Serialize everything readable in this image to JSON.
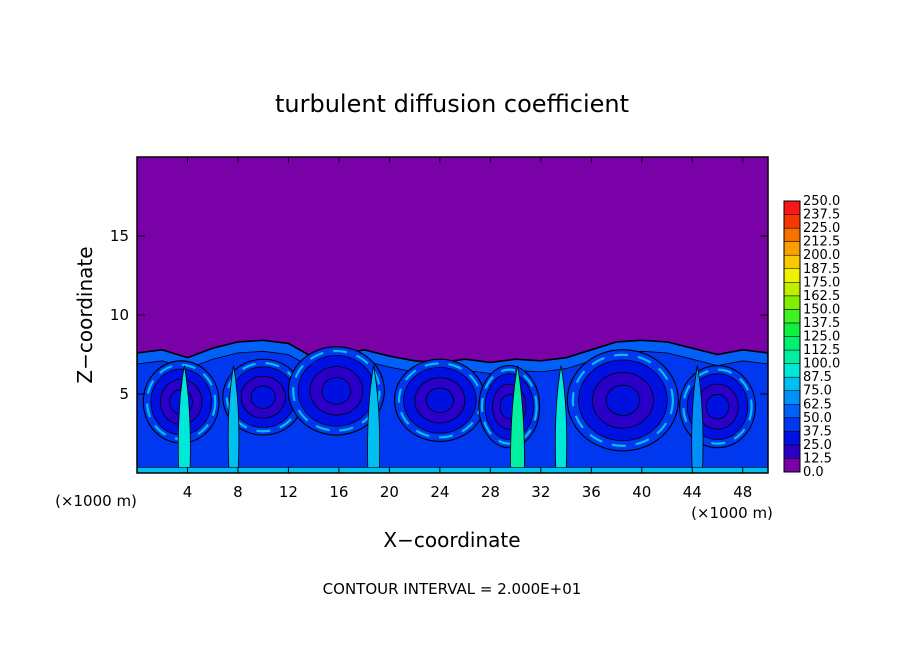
{
  "chart_data": {
    "type": "heatmap",
    "title": "turbulent diffusion coefficient",
    "xlabel": "X−coordinate",
    "ylabel": "Z−coordinate",
    "x_unit_left": "(×1000 m)",
    "x_unit_right": "(×1000 m)",
    "footer": "CONTOUR INTERVAL = 2.000E+01",
    "xlim": [
      0,
      50
    ],
    "ylim": [
      0,
      20
    ],
    "x_ticks": [
      {
        "v": 4,
        "label": "4"
      },
      {
        "v": 8,
        "label": "8"
      },
      {
        "v": 12,
        "label": "12"
      },
      {
        "v": 16,
        "label": "16"
      },
      {
        "v": 20,
        "label": "20"
      },
      {
        "v": 24,
        "label": "24"
      },
      {
        "v": 28,
        "label": "28"
      },
      {
        "v": 32,
        "label": "32"
      },
      {
        "v": 36,
        "label": "36"
      },
      {
        "v": 40,
        "label": "40"
      },
      {
        "v": 44,
        "label": "44"
      },
      {
        "v": 48,
        "label": "48"
      }
    ],
    "y_ticks": [
      {
        "v": 5,
        "label": "5"
      },
      {
        "v": 10,
        "label": "10"
      },
      {
        "v": 15,
        "label": "15"
      }
    ],
    "colorbar": [
      {
        "label": "0.0",
        "color": "#7a00a8"
      },
      {
        "label": "12.5",
        "color": "#2a00c8"
      },
      {
        "label": "25.0",
        "color": "#0010e0"
      },
      {
        "label": "37.5",
        "color": "#0038f0"
      },
      {
        "label": "50.0",
        "color": "#0060f8"
      },
      {
        "label": "62.5",
        "color": "#0090f8"
      },
      {
        "label": "75.0",
        "color": "#00c0f0"
      },
      {
        "label": "87.5",
        "color": "#00e8d8"
      },
      {
        "label": "100.0",
        "color": "#00f0a0"
      },
      {
        "label": "112.5",
        "color": "#00f070"
      },
      {
        "label": "125.0",
        "color": "#10f040"
      },
      {
        "label": "137.5",
        "color": "#40f020"
      },
      {
        "label": "150.0",
        "color": "#80f000"
      },
      {
        "label": "162.5",
        "color": "#c0f000"
      },
      {
        "label": "175.0",
        "color": "#f0f000"
      },
      {
        "label": "187.5",
        "color": "#f8c800"
      },
      {
        "label": "200.0",
        "color": "#f8a000"
      },
      {
        "label": "212.5",
        "color": "#f87000"
      },
      {
        "label": "225.0",
        "color": "#f83800"
      },
      {
        "label": "237.5",
        "color": "#f81818"
      },
      {
        "label": "250.0",
        "color": "#f07070"
      }
    ],
    "background_color": "#7a00a8",
    "boundary_layer_top": [
      [
        0,
        7.6
      ],
      [
        2,
        7.8
      ],
      [
        4,
        7.3
      ],
      [
        6,
        7.9
      ],
      [
        8,
        8.3
      ],
      [
        10,
        8.4
      ],
      [
        12,
        8.2
      ],
      [
        14,
        7.3
      ],
      [
        16,
        7.5
      ],
      [
        18,
        7.8
      ],
      [
        20,
        7.4
      ],
      [
        22,
        7.1
      ],
      [
        24,
        7.0
      ],
      [
        26,
        7.2
      ],
      [
        28,
        7.0
      ],
      [
        30,
        7.2
      ],
      [
        32,
        7.1
      ],
      [
        34,
        7.3
      ],
      [
        36,
        7.8
      ],
      [
        38,
        8.3
      ],
      [
        40,
        8.4
      ],
      [
        42,
        8.3
      ],
      [
        44,
        7.9
      ],
      [
        46,
        7.5
      ],
      [
        48,
        7.8
      ],
      [
        50,
        7.6
      ]
    ],
    "eddies": [
      {
        "cx": 3.5,
        "cz": 4.5,
        "rx": 3,
        "rz": 2.6
      },
      {
        "cx": 10,
        "cz": 4.8,
        "rx": 3.2,
        "rz": 2.4
      },
      {
        "cx": 15.8,
        "cz": 5.2,
        "rx": 3.8,
        "rz": 2.8
      },
      {
        "cx": 24,
        "cz": 4.6,
        "rx": 3.6,
        "rz": 2.6
      },
      {
        "cx": 29.5,
        "cz": 4.2,
        "rx": 2.4,
        "rz": 2.6
      },
      {
        "cx": 38.5,
        "cz": 4.6,
        "rx": 4.4,
        "rz": 3.2
      },
      {
        "cx": 46,
        "cz": 4.2,
        "rx": 3.0,
        "rz": 2.6
      }
    ],
    "plumes": [
      {
        "x0": 3.3,
        "x1": 4.2,
        "level": "87.5"
      },
      {
        "x0": 7.3,
        "x1": 8.0,
        "level": "75.0"
      },
      {
        "x0": 18.3,
        "x1": 19.2,
        "level": "75.0"
      },
      {
        "x0": 29.6,
        "x1": 30.7,
        "level": "100.0"
      },
      {
        "x0": 33.2,
        "x1": 34.0,
        "level": "87.5"
      },
      {
        "x0": 44.0,
        "x1": 44.8,
        "level": "62.5"
      }
    ]
  }
}
